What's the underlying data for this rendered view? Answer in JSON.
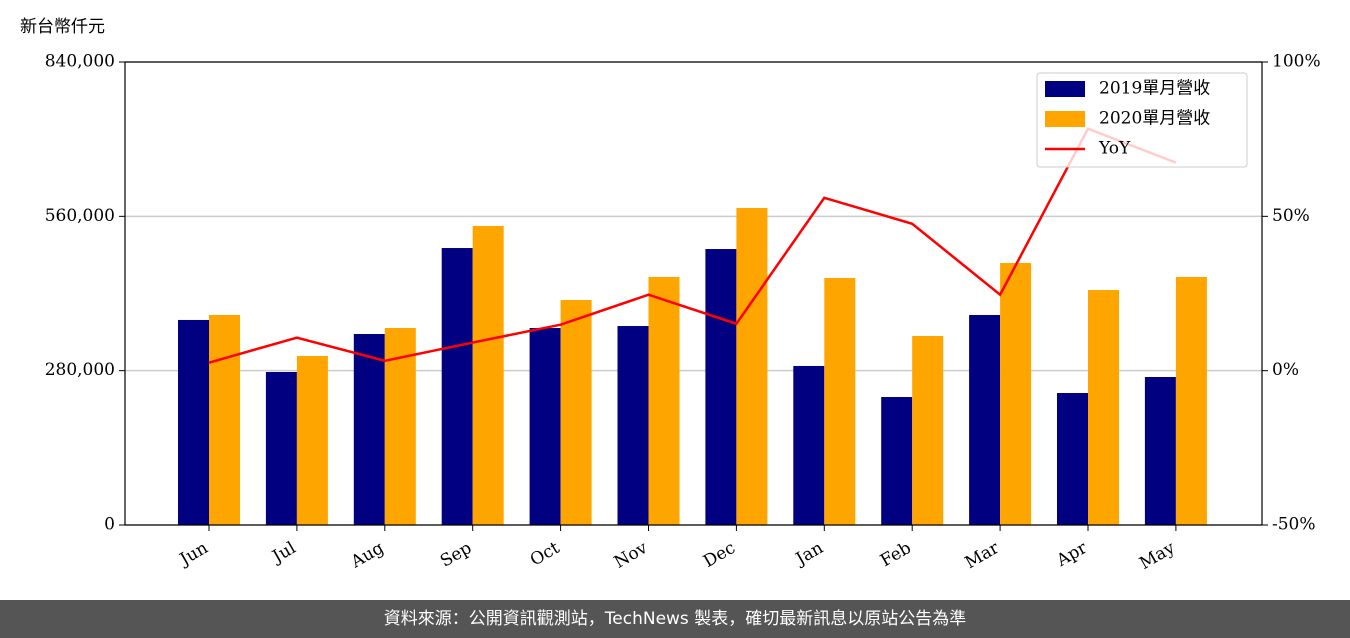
{
  "chart_data": {
    "type": "bar",
    "unit_label": "新台幣仟元",
    "categories": [
      "Jun",
      "Jul",
      "Aug",
      "Sep",
      "Oct",
      "Nov",
      "Dec",
      "Jan",
      "Feb",
      "Mar",
      "Apr",
      "May"
    ],
    "series": [
      {
        "name": "2019單月營收",
        "color": "#000080",
        "type": "bar",
        "values": [
          372000,
          277600,
          346500,
          502500,
          357400,
          361000,
          500700,
          288500,
          232200,
          381000,
          239500,
          268500
        ]
      },
      {
        "name": "2020單月營收",
        "color": "#ffa500",
        "type": "bar",
        "values": [
          381000,
          306600,
          357400,
          542500,
          408200,
          450000,
          575100,
          448100,
          342900,
          475300,
          426300,
          450000
        ]
      },
      {
        "name": "YoY",
        "color": "#ff0000",
        "type": "line",
        "axis": "y2",
        "values": [
          2.6,
          10.7,
          3.2,
          9.1,
          14.9,
          24.6,
          15.2,
          56,
          47.6,
          24.6,
          78.4,
          67.4
        ]
      }
    ],
    "ylim": [
      0,
      840000
    ],
    "yticks": [
      0,
      {
        "value": 280000,
        "label": "280,000"
      },
      {
        "value": 560000,
        "label": "560,000"
      },
      {
        "value": 840000,
        "label": "840,000"
      }
    ],
    "y2lim": [
      -50,
      100
    ],
    "y2ticks": [
      {
        "value": -50,
        "label": "-50%"
      },
      {
        "value": 0,
        "label": "0%"
      },
      {
        "value": 50,
        "label": "50%"
      },
      {
        "value": 100,
        "label": "100%"
      }
    ],
    "grid": true,
    "legend": "upper right",
    "source": "資料來源：公開資訊觀測站，TechNews 製表，確切最新訊息以原站公告為準"
  }
}
